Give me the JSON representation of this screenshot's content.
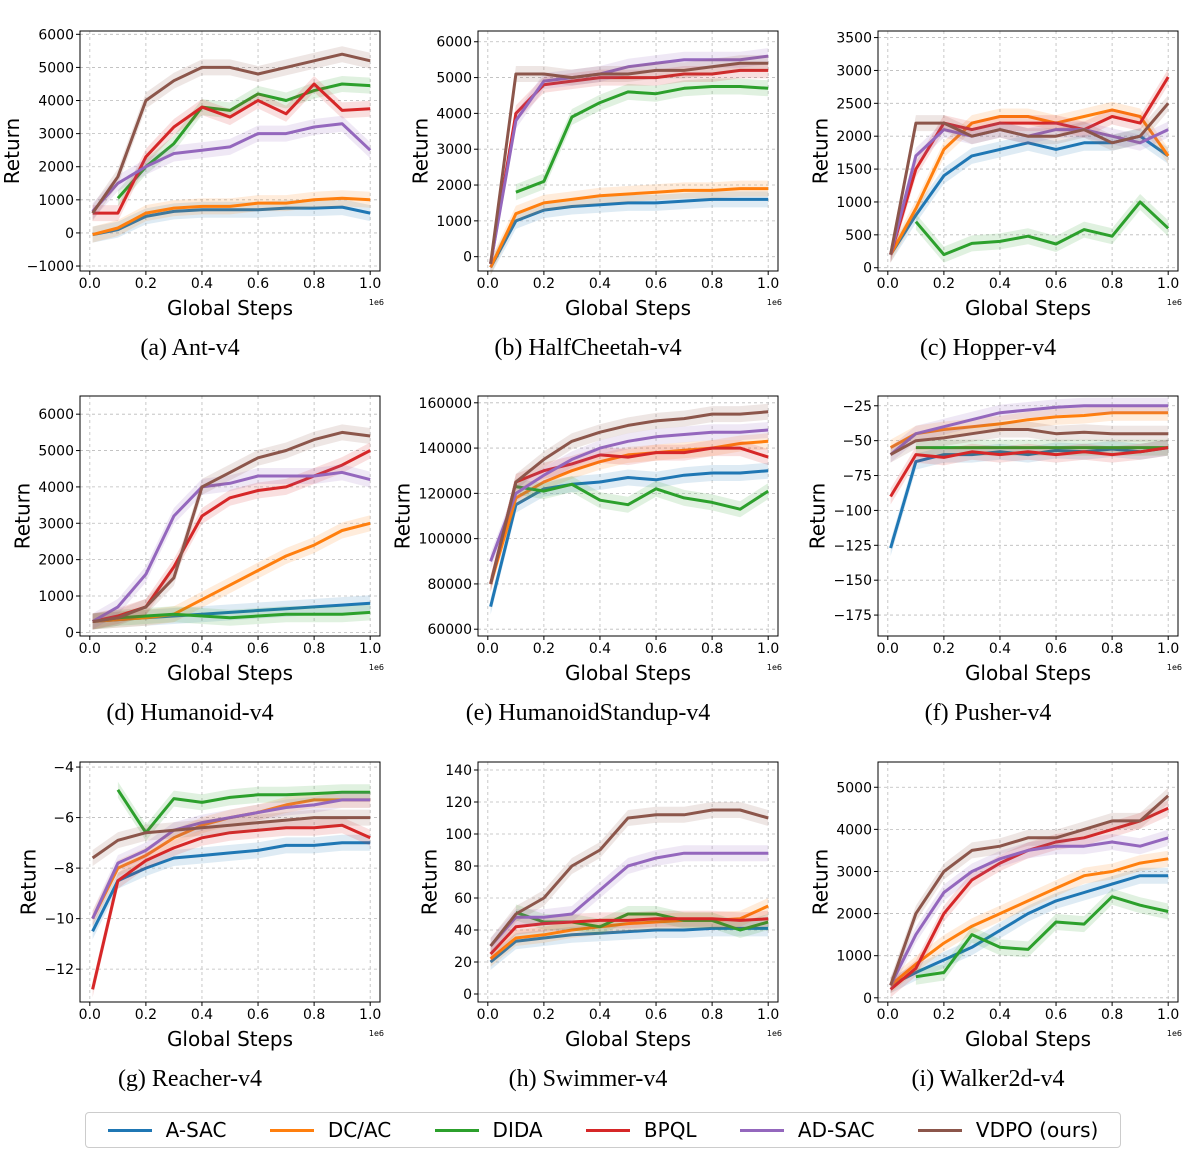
{
  "chart_data": {
    "type": "line",
    "x": [
      0.01,
      0.1,
      0.2,
      0.3,
      0.4,
      0.5,
      0.6,
      0.7,
      0.8,
      0.9,
      1.0
    ],
    "xlabel": "Global Steps",
    "ylabel": "Return",
    "x_scale_label": "1e6",
    "xticks": [
      "0.0",
      "0.2",
      "0.4",
      "0.6",
      "0.8",
      "1.0"
    ],
    "xlim": [
      -0.035,
      1.035
    ],
    "grid": true,
    "legend": {
      "placement": "bottom",
      "entries": [
        "A-SAC",
        "DC/AC",
        "DIDA",
        "BPQL",
        "AD-SAC",
        "VDPO (ours)"
      ]
    },
    "colors": [
      "#1f77b4",
      "#ff7f0e",
      "#2ca02c",
      "#d62728",
      "#9467bd",
      "#8c564b"
    ],
    "panels": [
      {
        "caption": "(a)  Ant-v4",
        "ylim": [
          -1150,
          6100
        ],
        "yticks": [
          -1000,
          0,
          1000,
          2000,
          3000,
          4000,
          5000,
          6000
        ],
        "series": [
          [
            -50,
            100,
            500,
            650,
            700,
            700,
            700,
            750,
            750,
            780,
            600
          ],
          [
            -50,
            150,
            600,
            750,
            800,
            800,
            900,
            900,
            1000,
            1050,
            1000
          ],
          [
            null,
            1050,
            2000,
            2700,
            3800,
            3700,
            4200,
            4000,
            4300,
            4500,
            4450
          ],
          [
            600,
            600,
            2300,
            3200,
            3800,
            3500,
            4000,
            3600,
            4500,
            3700,
            3750
          ],
          [
            650,
            1500,
            2000,
            2400,
            2500,
            2600,
            3000,
            3000,
            3200,
            3300,
            2500
          ],
          [
            600,
            1700,
            4000,
            4600,
            5000,
            5000,
            4800,
            5000,
            5200,
            5400,
            5200
          ]
        ]
      },
      {
        "caption": "(b)  HalfCheetah-v4",
        "ylim": [
          -400,
          6300
        ],
        "yticks": [
          0,
          1000,
          2000,
          3000,
          4000,
          5000,
          6000
        ],
        "series": [
          [
            -300,
            1000,
            1300,
            1400,
            1450,
            1500,
            1500,
            1550,
            1600,
            1600,
            1600
          ],
          [
            -300,
            1200,
            1500,
            1600,
            1700,
            1750,
            1800,
            1850,
            1850,
            1900,
            1900
          ],
          [
            null,
            1800,
            2100,
            3900,
            4300,
            4600,
            4550,
            4700,
            4750,
            4750,
            4700
          ],
          [
            -200,
            4000,
            4800,
            4900,
            5000,
            5000,
            5000,
            5100,
            5100,
            5200,
            5200
          ],
          [
            -200,
            3800,
            4900,
            5000,
            5100,
            5300,
            5400,
            5500,
            5500,
            5500,
            5600
          ],
          [
            -200,
            5100,
            5100,
            5000,
            5100,
            5100,
            5200,
            5200,
            5300,
            5400,
            5400
          ]
        ]
      },
      {
        "caption": "(c)  Hopper-v4",
        "ylim": [
          -50,
          3600
        ],
        "yticks": [
          0,
          500,
          1000,
          1500,
          2000,
          2500,
          3000,
          3500
        ],
        "series": [
          [
            200,
            800,
            1400,
            1700,
            1800,
            1900,
            1800,
            1900,
            1900,
            2000,
            1700
          ],
          [
            200,
            900,
            1800,
            2200,
            2300,
            2300,
            2200,
            2300,
            2400,
            2300,
            1700
          ],
          [
            null,
            700,
            200,
            370,
            400,
            480,
            360,
            580,
            480,
            1000,
            600
          ],
          [
            200,
            1500,
            2200,
            2100,
            2200,
            2200,
            2200,
            2100,
            2300,
            2200,
            2900
          ],
          [
            200,
            1700,
            2100,
            2000,
            2100,
            2000,
            2100,
            2100,
            2000,
            1900,
            2100
          ],
          [
            200,
            2200,
            2200,
            2000,
            2100,
            2000,
            2000,
            2100,
            1900,
            2000,
            2500
          ]
        ]
      },
      {
        "caption": "(d)  Humanoid-v4",
        "ylim": [
          -100,
          6500
        ],
        "yticks": [
          0,
          1000,
          2000,
          3000,
          4000,
          5000,
          6000
        ],
        "series": [
          [
            300,
            350,
            400,
            450,
            500,
            550,
            600,
            650,
            700,
            750,
            800
          ],
          [
            300,
            350,
            400,
            500,
            900,
            1300,
            1700,
            2100,
            2400,
            2800,
            3000
          ],
          [
            300,
            400,
            450,
            500,
            450,
            400,
            450,
            500,
            500,
            500,
            550
          ],
          [
            300,
            450,
            700,
            1800,
            3200,
            3700,
            3900,
            4000,
            4300,
            4600,
            5000
          ],
          [
            300,
            700,
            1600,
            3200,
            4000,
            4100,
            4300,
            4300,
            4300,
            4400,
            4200
          ],
          [
            300,
            400,
            700,
            1500,
            4000,
            4400,
            4800,
            5000,
            5300,
            5500,
            5400
          ]
        ]
      },
      {
        "caption": "(e)  HumanoidStandup-v4",
        "ylim": [
          57000,
          163000
        ],
        "yticks": [
          60000,
          80000,
          100000,
          120000,
          140000,
          160000
        ],
        "series": [
          [
            70000,
            115000,
            122000,
            124000,
            125000,
            127000,
            126000,
            128000,
            129000,
            129000,
            130000
          ],
          [
            80000,
            118000,
            125000,
            130000,
            134000,
            137000,
            138000,
            139000,
            140000,
            142000,
            143000
          ],
          [
            null,
            123000,
            121000,
            124000,
            117000,
            115000,
            122000,
            118000,
            116000,
            113000,
            121000
          ],
          [
            80000,
            125000,
            130000,
            133000,
            137000,
            136000,
            138000,
            138000,
            140000,
            140000,
            136000
          ],
          [
            90000,
            120000,
            128000,
            135000,
            140000,
            143000,
            145000,
            146000,
            147000,
            147000,
            148000
          ],
          [
            80000,
            125000,
            135000,
            143000,
            147000,
            150000,
            152000,
            153000,
            155000,
            155000,
            156000
          ]
        ]
      },
      {
        "caption": "(f)  Pusher-v4",
        "ylim": [
          -190,
          -18
        ],
        "yticks": [
          -175,
          -150,
          -125,
          -100,
          -75,
          -50,
          -25
        ],
        "series": [
          [
            -127,
            -65,
            -60,
            -60,
            -58,
            -60,
            -57,
            -58,
            -56,
            -58,
            -55
          ],
          [
            -55,
            -45,
            -42,
            -40,
            -38,
            -35,
            -33,
            -32,
            -30,
            -30,
            -30
          ],
          [
            null,
            -55,
            -55,
            -55,
            -55,
            -55,
            -55,
            -55,
            -55,
            -55,
            -55
          ],
          [
            -90,
            -60,
            -62,
            -58,
            -60,
            -58,
            -60,
            -58,
            -60,
            -58,
            -55
          ],
          [
            -60,
            -45,
            -40,
            -35,
            -30,
            -28,
            -26,
            -25,
            -25,
            -25,
            -25
          ],
          [
            -60,
            -50,
            -48,
            -45,
            -42,
            -42,
            -45,
            -44,
            -45,
            -45,
            -45
          ]
        ]
      },
      {
        "caption": "(g)  Reacher-v4",
        "ylim": [
          -13.3,
          -3.8
        ],
        "yticks": [
          -12,
          -10,
          -8,
          -6,
          -4
        ],
        "series": [
          [
            -10.5,
            -8.5,
            -8,
            -7.6,
            -7.5,
            -7.4,
            -7.3,
            -7.1,
            -7.1,
            -7,
            -7
          ],
          [
            -10,
            -8,
            -7.5,
            -6.8,
            -6.3,
            -6,
            -5.8,
            -5.5,
            -5.3,
            -5.3,
            -5.3
          ],
          [
            null,
            -4.9,
            -6.6,
            -5.25,
            -5.4,
            -5.2,
            -5.1,
            -5.1,
            -5.05,
            -5,
            -5
          ],
          [
            -12.8,
            -8.5,
            -7.7,
            -7.2,
            -6.8,
            -6.6,
            -6.5,
            -6.4,
            -6.4,
            -6.3,
            -6.8
          ],
          [
            -10,
            -7.8,
            -7.3,
            -6.5,
            -6.2,
            -6,
            -5.8,
            -5.6,
            -5.5,
            -5.3,
            -5.3
          ],
          [
            -7.6,
            -6.9,
            -6.6,
            -6.5,
            -6.4,
            -6.3,
            -6.2,
            -6.1,
            -6,
            -6,
            -6
          ]
        ]
      },
      {
        "caption": "(h)  Swimmer-v4",
        "ylim": [
          -5,
          145
        ],
        "yticks": [
          0,
          20,
          40,
          60,
          80,
          100,
          120,
          140
        ],
        "series": [
          [
            20,
            33,
            35,
            37,
            38,
            39,
            40,
            40,
            41,
            41,
            41
          ],
          [
            22,
            35,
            37,
            40,
            42,
            44,
            45,
            46,
            46,
            47,
            55
          ],
          [
            null,
            51,
            45,
            45,
            42,
            50,
            50,
            46,
            46,
            40,
            45
          ],
          [
            25,
            42,
            44,
            45,
            46,
            46,
            47,
            47,
            47,
            46,
            47
          ],
          [
            30,
            48,
            48,
            50,
            65,
            80,
            85,
            88,
            88,
            88,
            88
          ],
          [
            30,
            50,
            60,
            80,
            90,
            110,
            112,
            112,
            115,
            115,
            110
          ]
        ]
      },
      {
        "caption": "(i)  Walker2d-v4",
        "ylim": [
          -100,
          5600
        ],
        "yticks": [
          0,
          1000,
          2000,
          3000,
          4000,
          5000
        ],
        "series": [
          [
            300,
            600,
            900,
            1200,
            1600,
            2000,
            2300,
            2500,
            2700,
            2900,
            2900
          ],
          [
            300,
            800,
            1300,
            1700,
            2000,
            2300,
            2600,
            2900,
            3000,
            3200,
            3300
          ],
          [
            null,
            500,
            600,
            1500,
            1200,
            1150,
            1800,
            1750,
            2400,
            2200,
            2050
          ],
          [
            200,
            700,
            2000,
            2800,
            3200,
            3500,
            3700,
            3800,
            4000,
            4200,
            4500
          ],
          [
            300,
            1500,
            2500,
            3000,
            3300,
            3500,
            3600,
            3600,
            3700,
            3600,
            3800
          ],
          [
            300,
            2000,
            3000,
            3500,
            3600,
            3800,
            3800,
            4000,
            4200,
            4200,
            4800
          ]
        ]
      }
    ]
  }
}
